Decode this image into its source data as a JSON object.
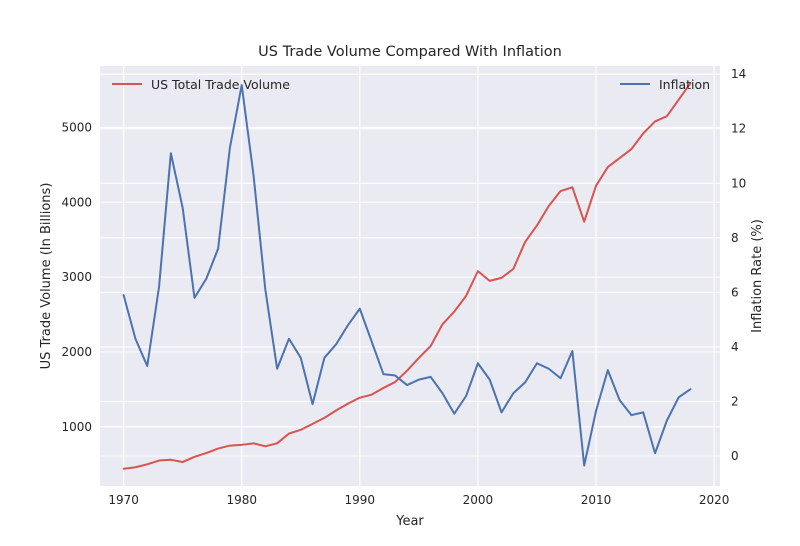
{
  "chart_data": {
    "type": "line",
    "title": "US Trade Volume Compared With Inflation",
    "xlabel": "Year",
    "ylabel_left": "US Trade Volume (In Billions)",
    "ylabel_right": "Inflation Rate (%)",
    "xlim": [
      1968,
      2020.5
    ],
    "ylim_left": [
      210,
      5820
    ],
    "ylim_right": [
      -1.1,
      14.3
    ],
    "x_ticks": [
      1970,
      1980,
      1990,
      2000,
      2010,
      2020
    ],
    "y_ticks_left": [
      1000,
      2000,
      3000,
      4000,
      5000
    ],
    "y_ticks_right": [
      0,
      2,
      4,
      6,
      8,
      10,
      12,
      14
    ],
    "grid": true,
    "legend": [
      {
        "name": "US Total Trade Volume",
        "placement": "top-left",
        "color": "#d9534f"
      },
      {
        "name": "Inflation",
        "placement": "top-right",
        "color": "#4c72b0"
      }
    ],
    "series": [
      {
        "name": "US Total Trade Volume",
        "axis": "left",
        "color": "#d9534f",
        "x": [
          1970,
          1971,
          1972,
          1973,
          1974,
          1975,
          1976,
          1977,
          1978,
          1979,
          1980,
          1981,
          1982,
          1983,
          1984,
          1985,
          1986,
          1987,
          1988,
          1989,
          1990,
          1991,
          1992,
          1993,
          1994,
          1995,
          1996,
          1997,
          1998,
          1999,
          2000,
          2001,
          2002,
          2003,
          2004,
          2005,
          2006,
          2007,
          2008,
          2009,
          2010,
          2011,
          2012,
          2013,
          2014,
          2015,
          2016,
          2017,
          2018
        ],
        "values": [
          440,
          460,
          500,
          550,
          560,
          530,
          600,
          650,
          710,
          750,
          760,
          780,
          740,
          780,
          910,
          960,
          1040,
          1120,
          1220,
          1310,
          1390,
          1430,
          1520,
          1600,
          1750,
          1920,
          2080,
          2370,
          2540,
          2750,
          3080,
          2950,
          2990,
          3110,
          3470,
          3690,
          3950,
          4150,
          4200,
          3740,
          4220,
          4470,
          4590,
          4710,
          4920,
          5080,
          5150,
          5370,
          5590
        ]
      },
      {
        "name": "Inflation",
        "axis": "right",
        "color": "#4c72b0",
        "x": [
          1970,
          1971,
          1972,
          1973,
          1974,
          1975,
          1976,
          1977,
          1978,
          1979,
          1980,
          1981,
          1982,
          1983,
          1984,
          1985,
          1986,
          1987,
          1988,
          1989,
          1990,
          1991,
          1992,
          1993,
          1994,
          1995,
          1996,
          1997,
          1998,
          1999,
          2000,
          2001,
          2002,
          2003,
          2004,
          2005,
          2006,
          2007,
          2008,
          2009,
          2010,
          2011,
          2012,
          2013,
          2014,
          2015,
          2016,
          2017,
          2018
        ],
        "values": [
          5.9,
          4.3,
          3.3,
          6.2,
          11.1,
          9.1,
          5.8,
          6.5,
          7.6,
          11.3,
          13.6,
          10.3,
          6.1,
          3.2,
          4.3,
          3.6,
          1.9,
          3.6,
          4.1,
          4.8,
          5.4,
          4.2,
          3.0,
          2.95,
          2.6,
          2.8,
          2.9,
          2.3,
          1.55,
          2.2,
          3.4,
          2.8,
          1.6,
          2.3,
          2.7,
          3.4,
          3.2,
          2.85,
          3.85,
          -0.35,
          1.65,
          3.15,
          2.05,
          1.5,
          1.6,
          0.1,
          1.3,
          2.15,
          2.45
        ]
      }
    ]
  }
}
